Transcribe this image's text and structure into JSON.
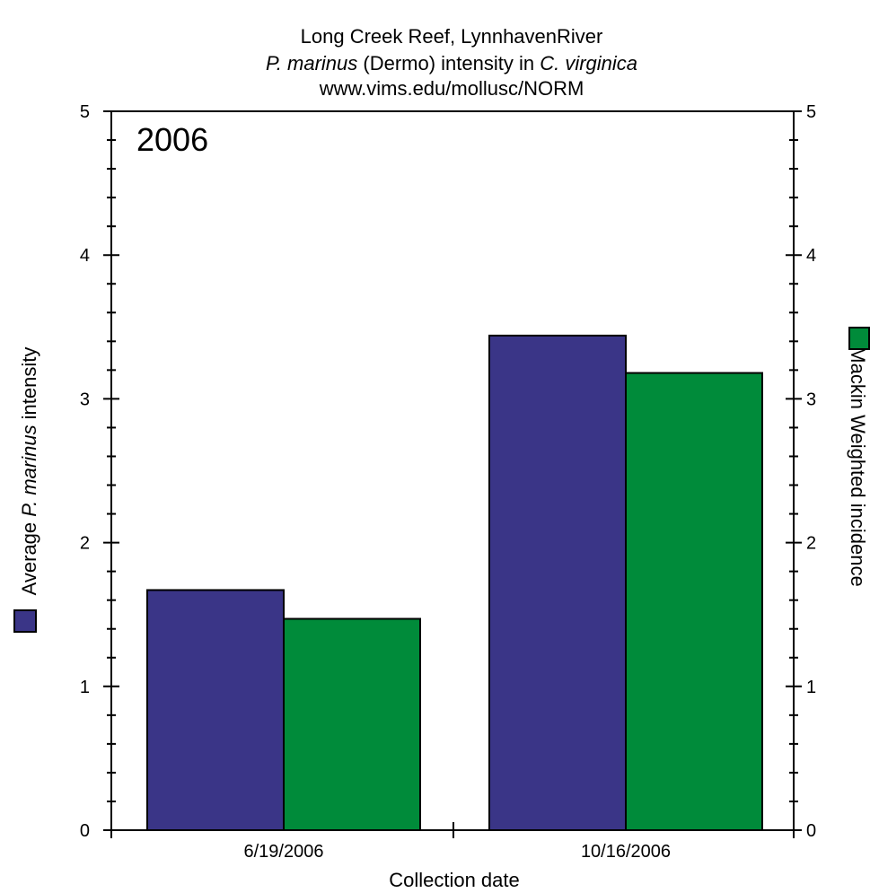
{
  "chart_data": {
    "type": "bar",
    "title_lines": [
      {
        "plain": "Long Creek Reef, LynnhavenRiver"
      },
      {
        "italic_1": "P. marinus",
        "plain": " (Dermo) intensity in ",
        "italic_2": "C. virginica"
      },
      {
        "plain": "www.vims.edu/mollusc/NORM"
      }
    ],
    "year_label": "2006",
    "xlabel": "Collection date",
    "ylabel_left": {
      "prefix": "Average ",
      "italic": "P. marinus",
      "suffix": " intensity"
    },
    "ylabel_right": "Mackin Weighted incidence",
    "categories": [
      "6/19/2006",
      "10/16/2006"
    ],
    "series": [
      {
        "values": [
          1.67,
          3.44
        ],
        "color": "#3a3587",
        "axis": "left"
      },
      {
        "values": [
          1.47,
          3.18
        ],
        "color": "#008b3a",
        "axis": "right"
      }
    ],
    "ylim_left": [
      0,
      5
    ],
    "ylim_right": [
      0,
      5
    ],
    "y_ticks": [
      "0",
      "1",
      "2",
      "3",
      "4",
      "5"
    ],
    "grid": false
  }
}
